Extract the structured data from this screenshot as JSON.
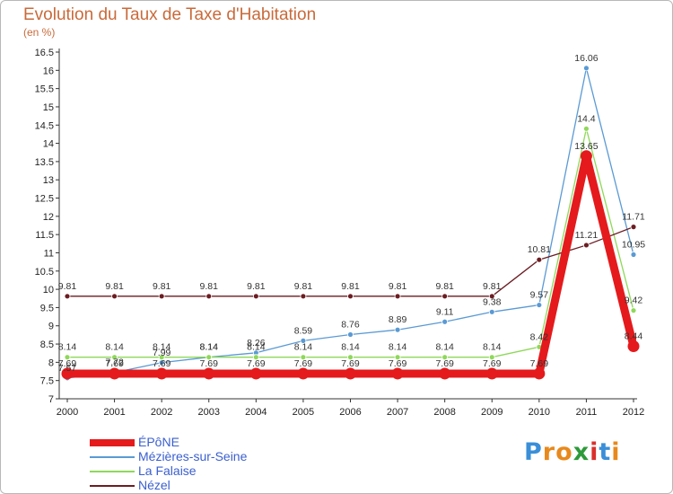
{
  "title": "Evolution du Taux de Taxe d'Habitation",
  "subtitle": "(en %)",
  "logo": {
    "text": "Proxiti",
    "letters": [
      "P",
      "r",
      "o",
      "x",
      "i",
      "t",
      "i"
    ],
    "colors": [
      "#3a8fd8",
      "#e8891c",
      "#e8891c",
      "#2e9a3a",
      "#d9302c",
      "#3a8fd8",
      "#e8891c"
    ]
  },
  "chart_data": {
    "type": "line",
    "title": "Evolution du Taux de Taxe d'Habitation",
    "ylabel": "(en %)",
    "x": [
      "2000",
      "2001",
      "2002",
      "2003",
      "2004",
      "2005",
      "2006",
      "2007",
      "2008",
      "2009",
      "2010",
      "2011",
      "2012"
    ],
    "ylim": [
      7,
      16.5
    ],
    "y_ticks": [
      "7",
      "7.5",
      "8",
      "8.5",
      "9",
      "9.5",
      "10",
      "10.5",
      "11",
      "11.5",
      "12",
      "12.5",
      "13",
      "13.5",
      "14",
      "14.5",
      "15",
      "15.5",
      "16",
      "16.5"
    ],
    "grid": false,
    "legend_position": "bottom-left",
    "series": [
      {
        "name": "ÉPôNE",
        "color": "#e41a1c",
        "width": 9,
        "values": [
          7.69,
          7.69,
          7.69,
          7.69,
          7.69,
          7.69,
          7.69,
          7.69,
          7.69,
          7.69,
          7.69,
          13.65,
          8.44
        ]
      },
      {
        "name": "Mézières-sur-Seine",
        "color": "#5a9ad4",
        "width": 1.3,
        "values": [
          7.57,
          7.72,
          7.99,
          8.14,
          8.26,
          8.59,
          8.76,
          8.89,
          9.11,
          9.38,
          9.57,
          16.06,
          10.95
        ]
      },
      {
        "name": "La Falaise",
        "color": "#8fd85a",
        "width": 1.3,
        "values": [
          8.14,
          8.14,
          8.14,
          8.14,
          8.14,
          8.14,
          8.14,
          8.14,
          8.14,
          8.14,
          8.42,
          14.4,
          9.42
        ]
      },
      {
        "name": "Nézel",
        "color": "#6b1d22",
        "width": 1.3,
        "values": [
          9.81,
          9.81,
          9.81,
          9.81,
          9.81,
          9.81,
          9.81,
          9.81,
          9.81,
          9.81,
          10.81,
          11.21,
          11.71
        ]
      }
    ],
    "data_labels": {
      "ÉPôNE": [
        "7.69",
        "7.69",
        "7.69",
        "7.69",
        "7.69",
        "7.69",
        "7.69",
        "7.69",
        "7.69",
        "7.69",
        "7.69",
        "13.65",
        "8.44"
      ],
      "Mézières-sur-Seine": [
        "7.57",
        "7.72",
        "7.99",
        "8.14",
        "8.26",
        "8.59",
        "8.76",
        "8.89",
        "9.11",
        "9.38",
        "9.57",
        "16.06",
        "10.95"
      ],
      "La Falaise": [
        "8.14",
        "8.14",
        "8.14",
        "8.14",
        "8.14",
        "8.14",
        "8.14",
        "8.14",
        "8.14",
        "8.14",
        "8.42",
        "14.4",
        "9.42"
      ],
      "Nézel": [
        "9.81",
        "9.81",
        "9.81",
        "9.81",
        "9.81",
        "9.81",
        "9.81",
        "9.81",
        "9.81",
        "9.81",
        "10.81",
        "11.21",
        "11.71"
      ]
    }
  }
}
